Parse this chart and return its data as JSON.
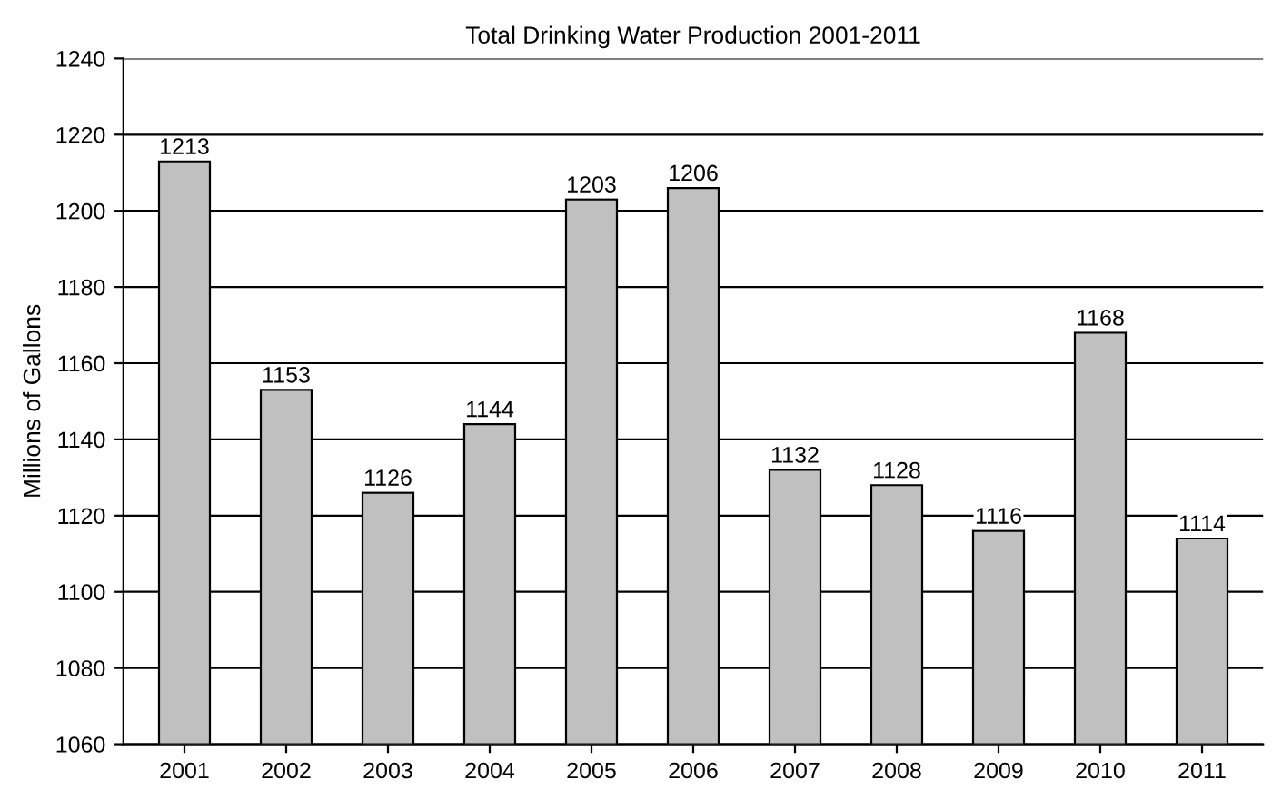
{
  "chart_data": {
    "type": "bar",
    "title": "Total Drinking Water Production 2001-2011",
    "ylabel": "Millions of Gallons",
    "categories": [
      "2001",
      "2002",
      "2003",
      "2004",
      "2005",
      "2006",
      "2007",
      "2008",
      "2009",
      "2010",
      "2011"
    ],
    "values": [
      1213,
      1153,
      1126,
      1144,
      1203,
      1206,
      1132,
      1128,
      1116,
      1168,
      1114
    ],
    "color": "#c0c0c0",
    "ylim": [
      1060,
      1240
    ],
    "yticks": [
      1060,
      1080,
      1100,
      1120,
      1140,
      1160,
      1180,
      1200,
      1220,
      1240
    ],
    "grid": "y",
    "data_labels": true
  }
}
